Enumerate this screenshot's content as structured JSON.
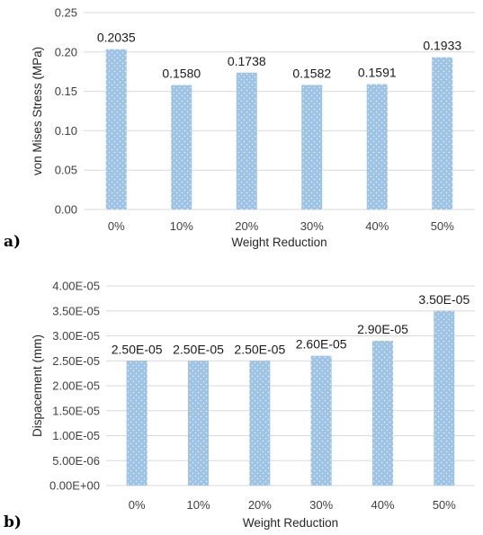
{
  "chart_data": [
    {
      "panel_label": "a)",
      "type": "bar",
      "categories": [
        "0%",
        "10%",
        "20%",
        "30%",
        "40%",
        "50%"
      ],
      "values": [
        0.2035,
        0.158,
        0.1738,
        0.1582,
        0.1591,
        0.1933
      ],
      "data_labels": [
        "0.2035",
        "0.1580",
        "0.1738",
        "0.1582",
        "0.1591",
        "0.1933"
      ],
      "xlabel": "Weight Reduction",
      "ylabel": "von Mises Stress (MPa)",
      "ylim": [
        0,
        0.25
      ],
      "yticks": [
        0,
        0.05,
        0.1,
        0.15,
        0.2,
        0.25
      ],
      "ytick_labels": [
        "0.00",
        "0.05",
        "0.10",
        "0.15",
        "0.20",
        "0.25"
      ],
      "grid": true,
      "bar_color": "#9dc3e6"
    },
    {
      "panel_label": "b)",
      "type": "bar",
      "categories": [
        "0%",
        "10%",
        "20%",
        "30%",
        "40%",
        "50%"
      ],
      "values": [
        2.5e-05,
        2.5e-05,
        2.5e-05,
        2.6e-05,
        2.9e-05,
        3.5e-05
      ],
      "data_labels": [
        "2.50E-05",
        "2.50E-05",
        "2.50E-05",
        "2.60E-05",
        "2.90E-05",
        "3.50E-05"
      ],
      "xlabel": "Weight Reduction",
      "ylabel": "Dispacement (mm)",
      "ylim": [
        0,
        4e-05
      ],
      "yticks": [
        0,
        5e-06,
        1e-05,
        1.5e-05,
        2e-05,
        2.5e-05,
        3e-05,
        3.5e-05,
        4e-05
      ],
      "ytick_labels": [
        "0.00E+00",
        "5.00E-06",
        "1.00E-05",
        "1.50E-05",
        "2.00E-05",
        "2.50E-05",
        "3.00E-05",
        "3.50E-05",
        "4.00E-05"
      ],
      "grid": true,
      "bar_color": "#9dc3e6"
    }
  ]
}
